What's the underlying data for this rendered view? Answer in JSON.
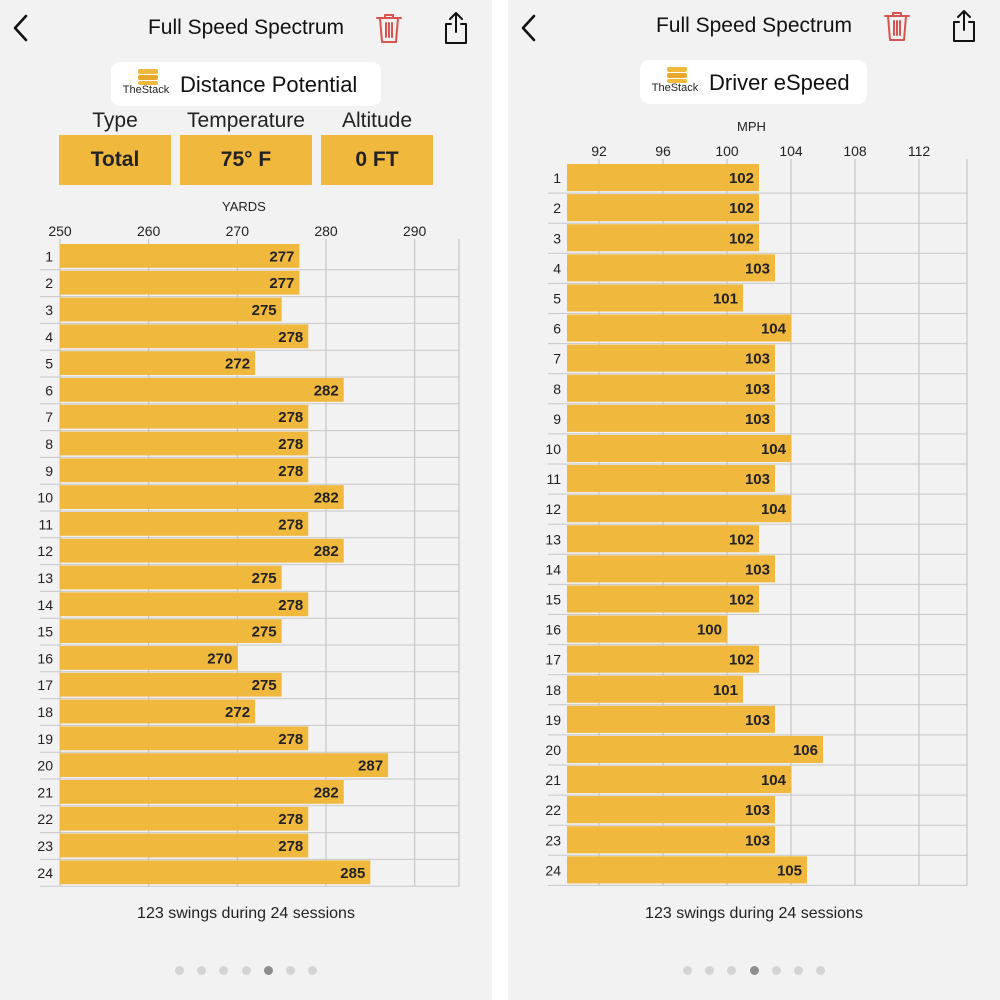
{
  "screens": [
    {
      "nav": {
        "title": "Full Speed Spectrum",
        "back_icon": "chevron-left-icon",
        "delete_icon": "trash-icon",
        "share_icon": "share-icon"
      },
      "metric": {
        "logo_text": "TheStack",
        "title": "Distance Potential"
      },
      "params": {
        "type_label": "Type",
        "type_value": "Total",
        "temperature_label": "Temperature",
        "temperature_value": "75° F",
        "altitude_label": "Altitude",
        "altitude_value": "0 FT"
      },
      "footer": "123 swings during 24 sessions",
      "pager": {
        "count": 7,
        "active": 4
      },
      "chart_data": {
        "type": "bar",
        "orientation": "horizontal",
        "xlabel": "YARDS",
        "xlim": [
          250,
          295
        ],
        "xticks": [
          250,
          260,
          270,
          280,
          290
        ],
        "categories": [
          "1",
          "2",
          "3",
          "4",
          "5",
          "6",
          "7",
          "8",
          "9",
          "10",
          "11",
          "12",
          "13",
          "14",
          "15",
          "16",
          "17",
          "18",
          "19",
          "20",
          "21",
          "22",
          "23",
          "24"
        ],
        "values": [
          277,
          277,
          275,
          278,
          272,
          282,
          278,
          278,
          278,
          282,
          278,
          282,
          275,
          278,
          275,
          270,
          275,
          272,
          278,
          287,
          282,
          278,
          278,
          285
        ],
        "bar_color": "#f0b93e",
        "grid": true
      }
    },
    {
      "nav": {
        "title": "Full Speed Spectrum",
        "back_icon": "chevron-left-icon",
        "delete_icon": "trash-icon",
        "share_icon": "share-icon"
      },
      "metric": {
        "logo_text": "TheStack",
        "title": "Driver eSpeed"
      },
      "footer": "123 swings during 24 sessions",
      "pager": {
        "count": 7,
        "active": 3
      },
      "chart_data": {
        "type": "bar",
        "orientation": "horizontal",
        "xlabel": "MPH",
        "xlim": [
          90,
          115
        ],
        "xticks": [
          92,
          96,
          100,
          104,
          108,
          112
        ],
        "categories": [
          "1",
          "2",
          "3",
          "4",
          "5",
          "6",
          "7",
          "8",
          "9",
          "10",
          "11",
          "12",
          "13",
          "14",
          "15",
          "16",
          "17",
          "18",
          "19",
          "20",
          "21",
          "22",
          "23",
          "24"
        ],
        "values": [
          102,
          102,
          102,
          103,
          101,
          104,
          103,
          103,
          103,
          104,
          103,
          104,
          102,
          103,
          102,
          100,
          102,
          101,
          103,
          106,
          104,
          103,
          103,
          105
        ],
        "bar_color": "#f0b93e",
        "grid": true
      }
    }
  ],
  "colors": {
    "accent": "#f0b93e",
    "trash": "#d9534f",
    "background": "#f2f2f2"
  }
}
